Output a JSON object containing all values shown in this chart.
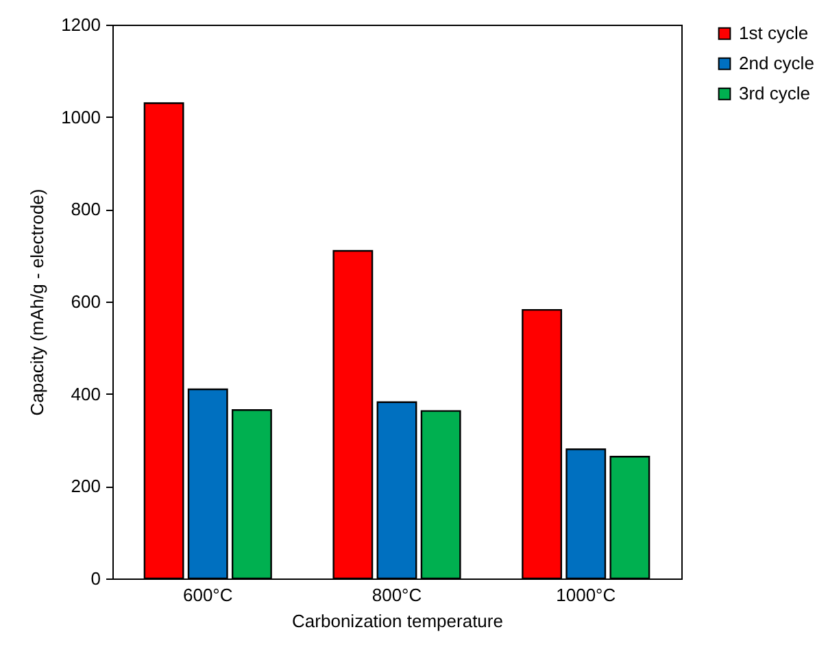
{
  "chart_data": {
    "type": "bar",
    "xlabel": "Carbonization temperature",
    "ylabel": "Capacity (mAh/g - electrode)",
    "categories": [
      "600°C",
      "800°C",
      "1000°C"
    ],
    "series": [
      {
        "name": "1st cycle",
        "color": "#ff0000",
        "values": [
          1030,
          710,
          582
        ]
      },
      {
        "name": "2nd cycle",
        "color": "#0070c0",
        "values": [
          410,
          382,
          280
        ]
      },
      {
        "name": "3rd cycle",
        "color": "#00b050",
        "values": [
          365,
          363,
          264
        ]
      }
    ],
    "ylim": [
      0,
      1200
    ],
    "yticks": [
      0,
      200,
      400,
      600,
      800,
      1000,
      1200
    ],
    "legend": "right"
  }
}
